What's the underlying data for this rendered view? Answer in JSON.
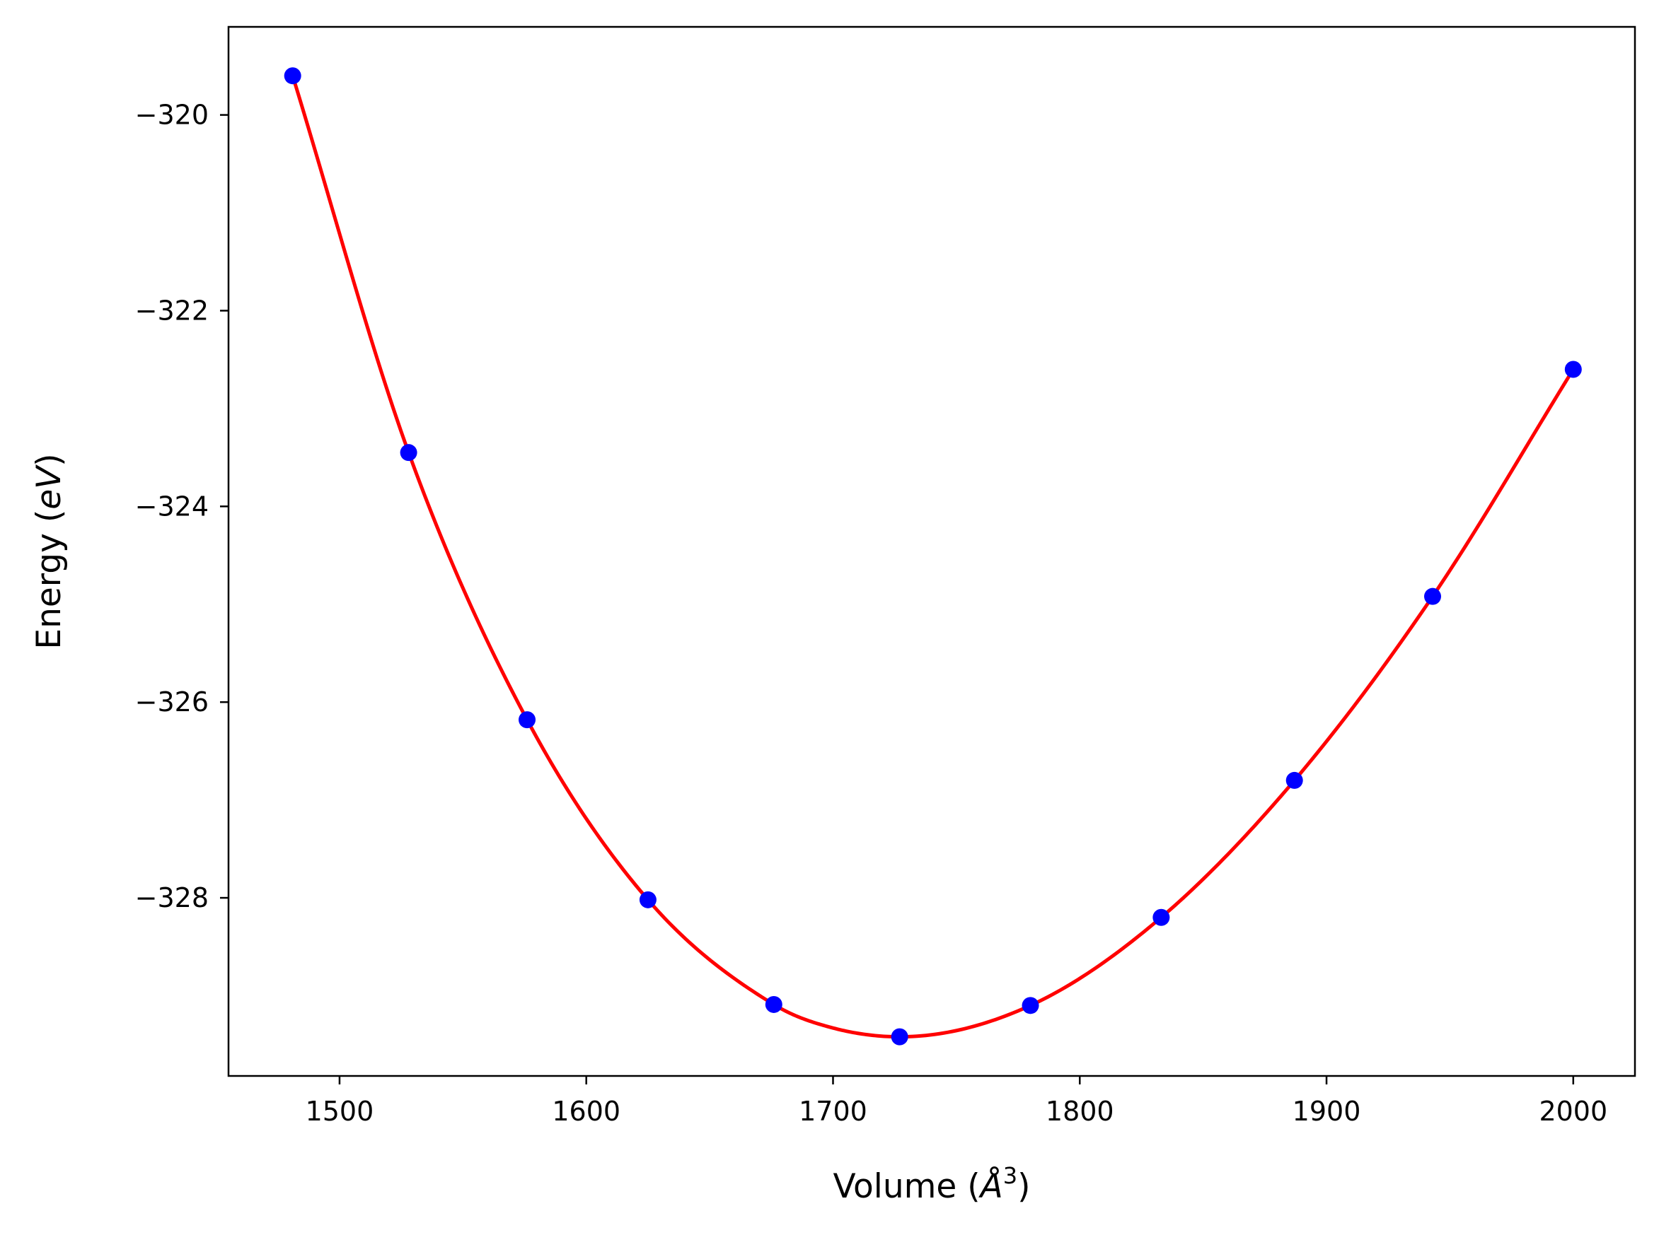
{
  "chart_data": {
    "type": "scatter",
    "xlabel": "Volume (Å³)",
    "ylabel": "Energy (eV)",
    "xlabel_parts": {
      "text": "Volume (",
      "symbol": "Å",
      "sup": "3",
      "close": ")"
    },
    "ylabel_parts": {
      "text": "Energy (",
      "unit": "eV",
      "close": ")"
    },
    "xlim": [
      1455,
      2025
    ],
    "ylim": [
      -329.82,
      -319.1
    ],
    "xticks": [
      1500,
      1600,
      1700,
      1800,
      1900,
      2000
    ],
    "yticks": [
      -320,
      -322,
      -324,
      -326,
      -328
    ],
    "xtick_labels": [
      "1500",
      "1600",
      "1700",
      "1800",
      "1900",
      "2000"
    ],
    "ytick_labels": [
      "−320",
      "−322",
      "−324",
      "−326",
      "−328"
    ],
    "grid": false,
    "series": [
      {
        "kind": "scatter",
        "color": "#0000ff",
        "x": [
          1481,
          1528,
          1576,
          1625,
          1676,
          1727,
          1780,
          1833,
          1887,
          1943,
          2000
        ],
        "y": [
          -319.6,
          -323.45,
          -326.18,
          -328.02,
          -329.09,
          -329.42,
          -329.1,
          -328.2,
          -326.8,
          -324.92,
          -322.6
        ]
      },
      {
        "kind": "line",
        "color": "#ff0000",
        "x": [
          1481,
          1528,
          1576,
          1625,
          1676,
          1700,
          1727,
          1780,
          1833,
          1887,
          1943,
          2000
        ],
        "y": [
          -319.6,
          -323.45,
          -326.18,
          -328.02,
          -329.09,
          -329.33,
          -329.42,
          -329.1,
          -328.2,
          -326.8,
          -324.92,
          -322.6
        ]
      }
    ]
  }
}
